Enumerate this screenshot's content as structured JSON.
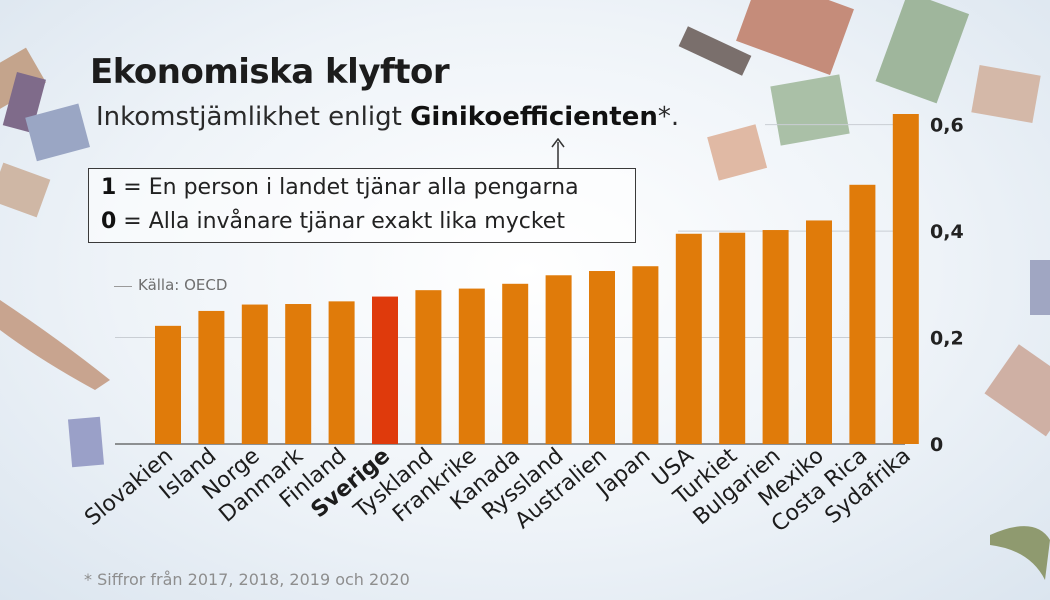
{
  "title": "Ekonomiska klyftor",
  "subtitle": {
    "prefix": "Inkomstjämlikhet enligt ",
    "emphasis": "Ginikoefficienten",
    "suffix": "*."
  },
  "legend": {
    "row1_key": "1",
    "row1_text": " = En person i landet tjänar alla pengarna",
    "row2_key": "0",
    "row2_text": " = Alla invånare tjänar exakt lika mycket"
  },
  "source": "Källa: OECD",
  "footnote": "* Siffror från 2017, 2018, 2019 och 2020",
  "colors": {
    "bar": "#e07b0a",
    "highlight": "#df3a0c",
    "grid": "#c9ced4"
  },
  "chart_data": {
    "type": "bar",
    "categories": [
      "Slovakien",
      "Island",
      "Norge",
      "Danmark",
      "Finland",
      "Sverige",
      "Tyskland",
      "Frankrike",
      "Kanada",
      "Ryssland",
      "Australien",
      "Japan",
      "USA",
      "Turkiet",
      "Bulgarien",
      "Mexiko",
      "Costa Rica",
      "Sydafrika"
    ],
    "values": [
      0.222,
      0.25,
      0.262,
      0.263,
      0.268,
      0.277,
      0.289,
      0.292,
      0.301,
      0.317,
      0.325,
      0.334,
      0.395,
      0.397,
      0.402,
      0.42,
      0.487,
      0.62
    ],
    "highlight": "Sverige",
    "ylim": [
      0,
      0.62
    ],
    "yticks": [
      0,
      0.2,
      0.4,
      0.6
    ],
    "ytick_labels": [
      "0",
      "0,2",
      "0,4",
      "0,6"
    ],
    "grid": true
  }
}
